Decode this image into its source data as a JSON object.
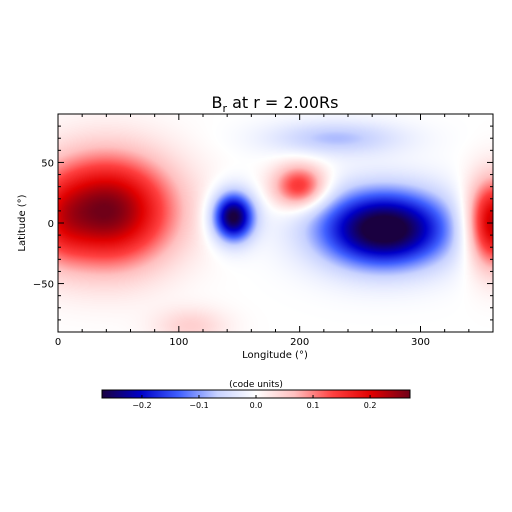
{
  "chart_data": {
    "type": "heatmap",
    "title": "B",
    "title_subscript": "r",
    "title_suffix": " at r = 2.00Rs",
    "xlabel": "Longitude (°)",
    "ylabel": "Latitude (°)",
    "xlim": [
      0,
      360
    ],
    "ylim": [
      -90,
      90
    ],
    "x_ticks": [
      0,
      100,
      200,
      300
    ],
    "y_ticks": [
      -50,
      0,
      50
    ],
    "x_tick_labels": [
      "0",
      "100",
      "200",
      "300"
    ],
    "y_tick_labels": [
      "−50",
      "0",
      "50"
    ],
    "colorbar": {
      "label": "(code units)",
      "range": [
        -0.27,
        0.27
      ],
      "ticks": [
        -0.2,
        -0.1,
        0.0,
        0.1,
        0.2
      ],
      "tick_labels": [
        "−0.2",
        "−0.1",
        "0.0",
        "0.1",
        "0.2"
      ],
      "colors": [
        "#1a0040",
        "#0000c8",
        "#4060ff",
        "#c8d2ff",
        "#ffffff",
        "#ffc0c0",
        "#ff4040",
        "#e00000",
        "#700018"
      ]
    },
    "field_components": [
      {
        "lon": 40,
        "lat": 10,
        "lon_width": 55,
        "lat_width": 45,
        "amplitude": 0.27
      },
      {
        "lon": 200,
        "lat": 30,
        "lon_width": 22,
        "lat_width": 18,
        "amplitude": 0.16
      },
      {
        "lon": 360,
        "lat": 0,
        "lon_width": 22,
        "lat_width": 35,
        "amplitude": 0.24
      },
      {
        "lon": 0,
        "lat": 0,
        "lon_width": 22,
        "lat_width": 35,
        "amplitude": 0.05
      },
      {
        "lon": 145,
        "lat": 5,
        "lon_width": 17,
        "lat_width": 20,
        "amplitude": -0.28
      },
      {
        "lon": 270,
        "lat": -5,
        "lon_width": 55,
        "lat_width": 32,
        "amplitude": -0.3
      },
      {
        "lon": 230,
        "lat": 70,
        "lon_width": 55,
        "lat_width": 14,
        "amplitude": -0.08
      },
      {
        "lon": 110,
        "lat": -85,
        "lon_width": 30,
        "lat_width": 15,
        "amplitude": 0.05
      }
    ]
  }
}
